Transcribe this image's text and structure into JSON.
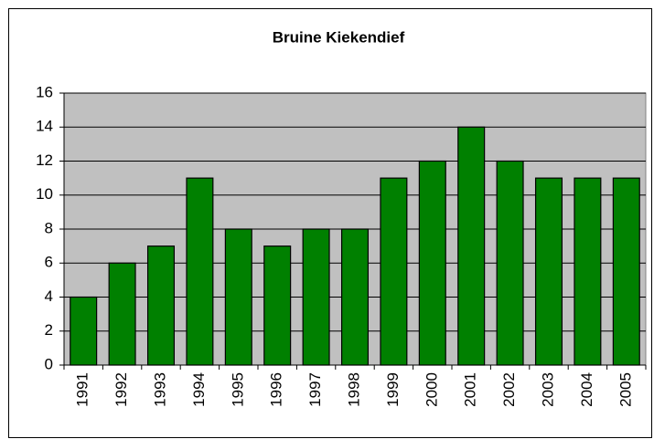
{
  "chart_data": {
    "type": "bar",
    "title": "Bruine Kiekendief",
    "categories": [
      "1991",
      "1992",
      "1993",
      "1994",
      "1995",
      "1996",
      "1997",
      "1998",
      "1999",
      "2000",
      "2001",
      "2002",
      "2003",
      "2004",
      "2005"
    ],
    "values": [
      4,
      6,
      7,
      11,
      8,
      7,
      8,
      8,
      11,
      12,
      14,
      12,
      11,
      11,
      11
    ],
    "color": "#008000",
    "ylim": [
      0,
      16
    ],
    "yticks": [
      0,
      2,
      4,
      6,
      8,
      10,
      12,
      14,
      16
    ],
    "grid": true
  }
}
